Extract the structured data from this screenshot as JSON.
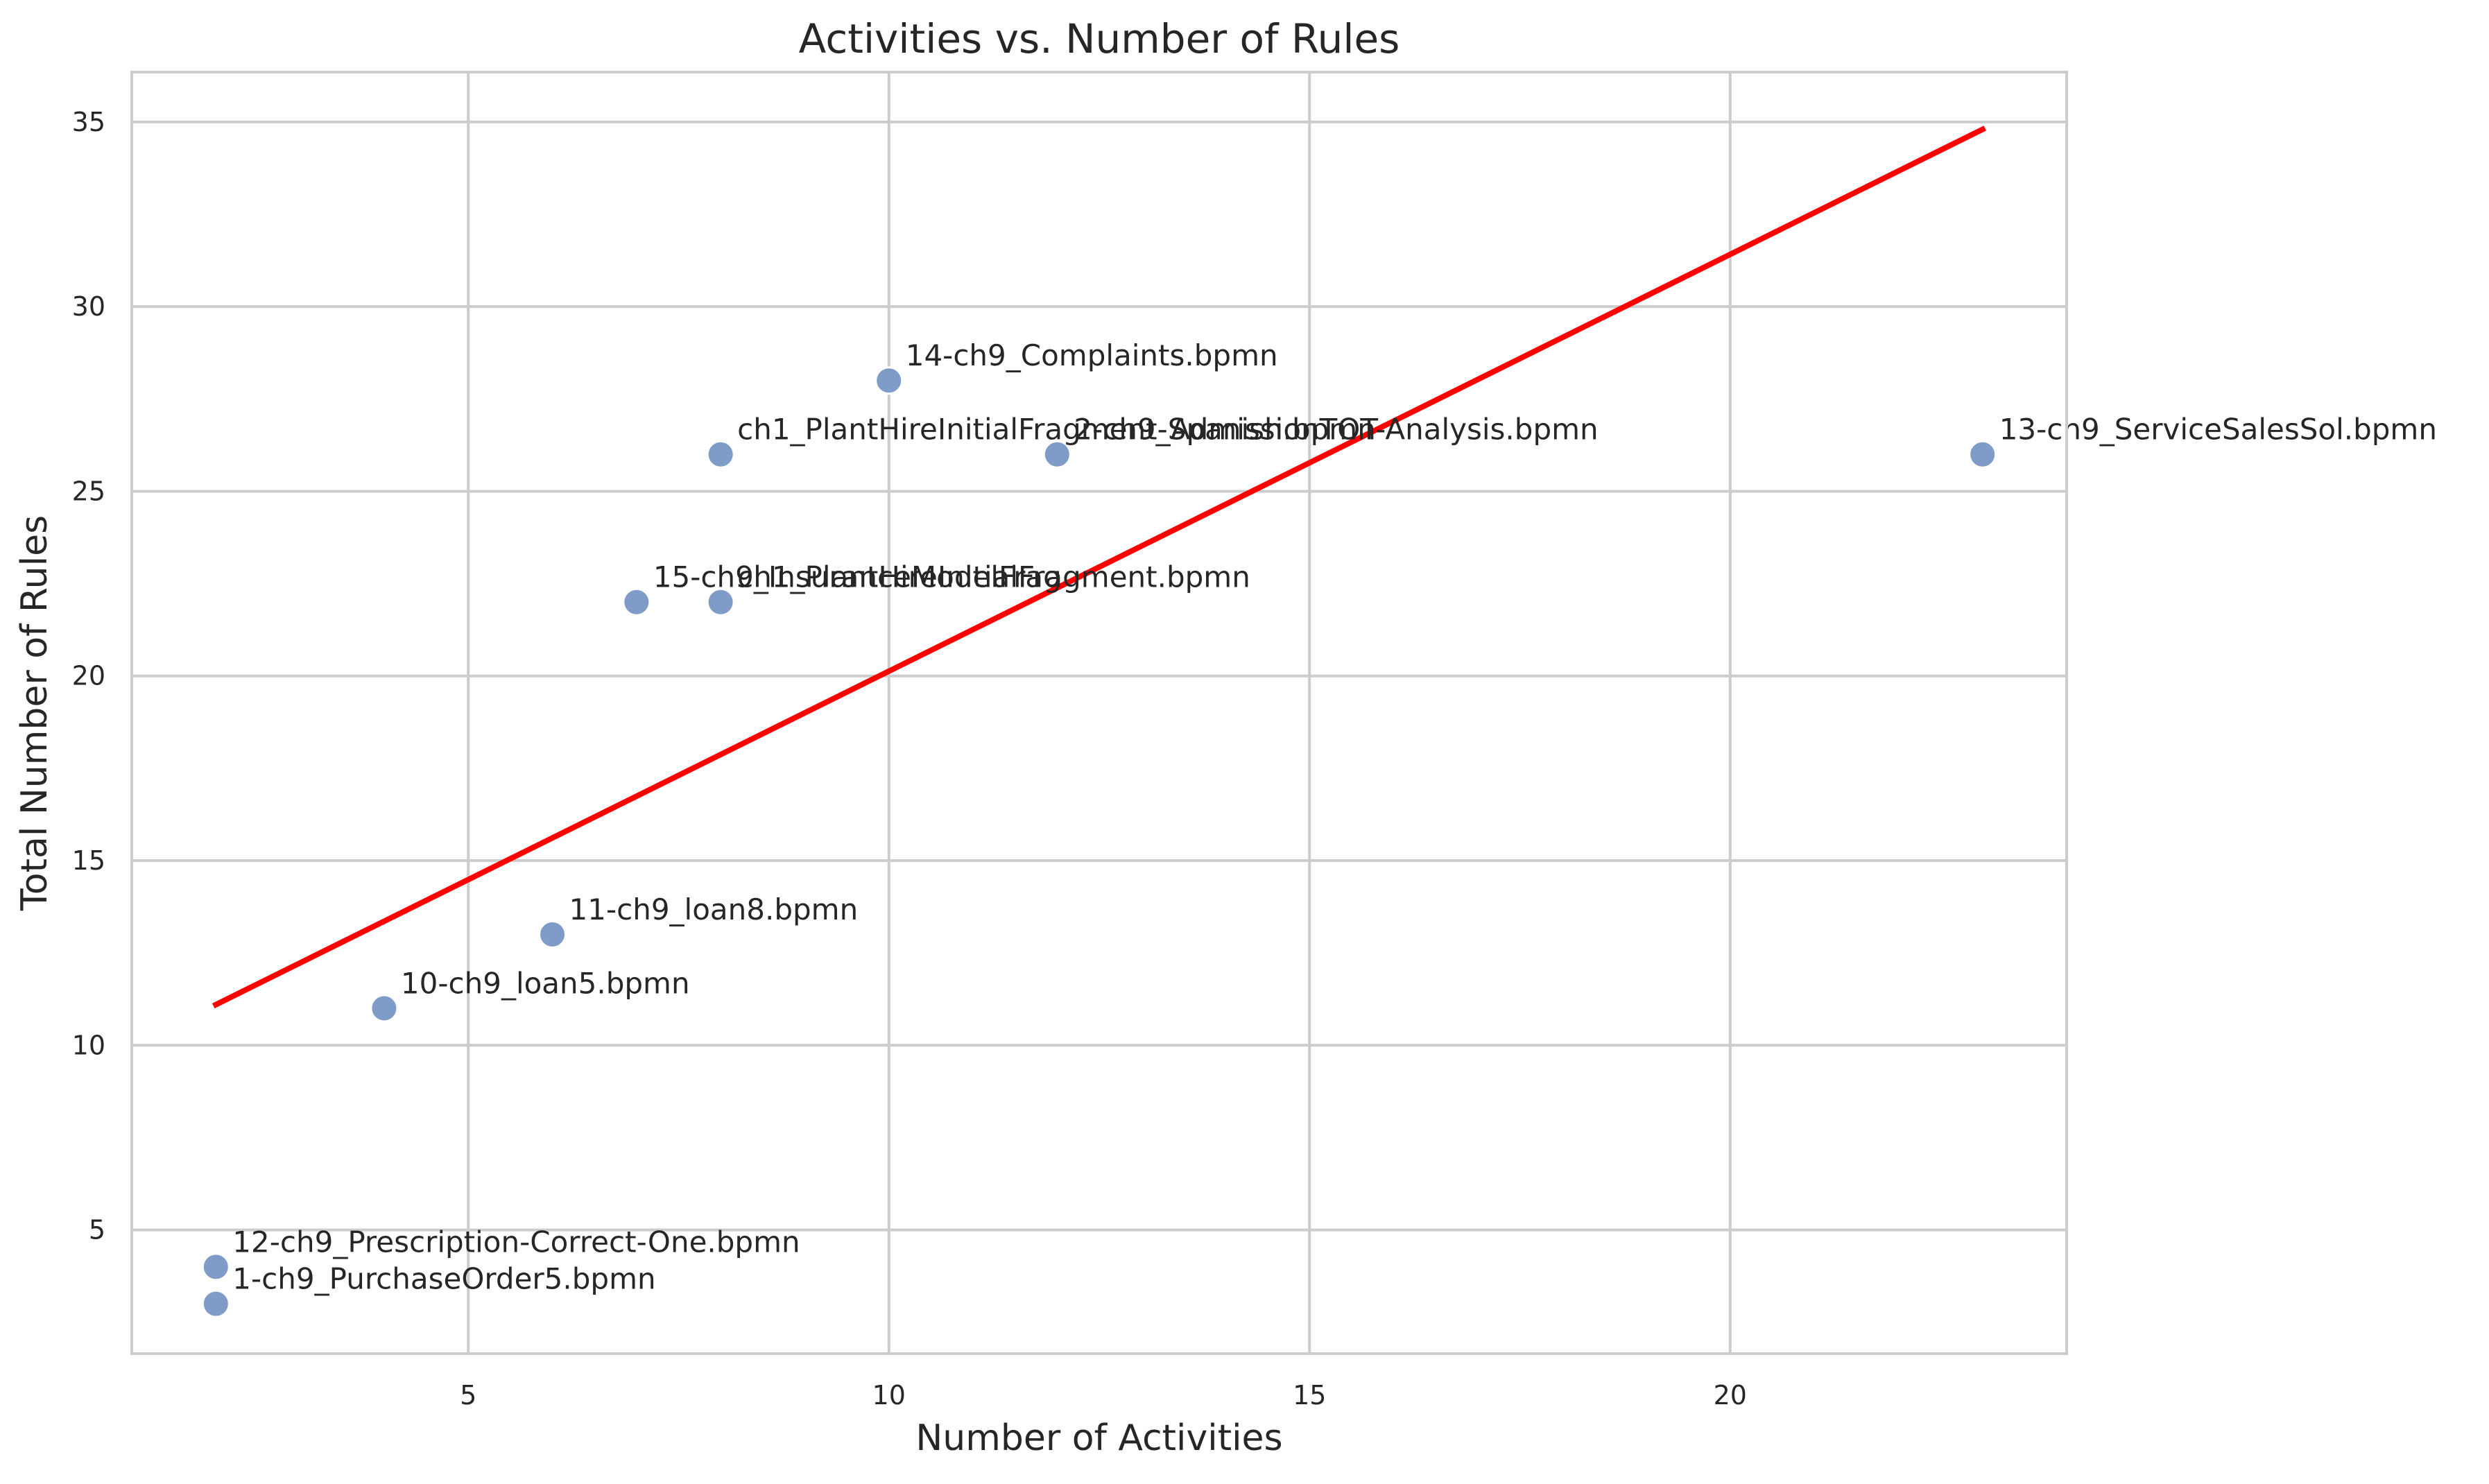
{
  "chart_data": {
    "type": "scatter",
    "title": "Activities vs. Number of Rules",
    "xlabel": "Number of Activities",
    "ylabel": "Total Number of Rules",
    "xlim": [
      1.0,
      24.0
    ],
    "ylim": [
      1.65,
      36.35
    ],
    "x_ticks": [
      5,
      10,
      15,
      20
    ],
    "y_ticks": [
      5,
      10,
      15,
      20,
      25,
      30,
      35
    ],
    "grid": true,
    "point_color": "#7f9cc8",
    "line_color": "#ff0000",
    "points": [
      {
        "x": 2,
        "y": 4,
        "label": "12-ch9_Prescription-Correct-One.bpmn"
      },
      {
        "x": 2,
        "y": 3,
        "label": "1-ch9_PurchaseOrder5.bpmn"
      },
      {
        "x": 4,
        "y": 11,
        "label": "10-ch9_loan5.bpmn"
      },
      {
        "x": 6,
        "y": 13,
        "label": "11-ch9_loan8.bpmn"
      },
      {
        "x": 7,
        "y": 22,
        "label": "15-ch9_InsuranceModelFrag"
      },
      {
        "x": 8,
        "y": 22,
        "label": "ch1_PlantHireInitialFragment.bpmn"
      },
      {
        "x": 8,
        "y": 26,
        "label": "ch1_PlantHireInitialFragment-Spanish.bpmn"
      },
      {
        "x": 10,
        "y": 28,
        "label": "14-ch9_Complaints.bpmn"
      },
      {
        "x": 12,
        "y": 26,
        "label": "2-ch9_AdmissionTOT-Analysis.bpmn"
      },
      {
        "x": 23,
        "y": 26,
        "label": "13-ch9_ServiceSalesSol.bpmn"
      }
    ],
    "trendline": {
      "x": [
        2,
        23
      ],
      "y": [
        11.1,
        34.8
      ]
    }
  }
}
